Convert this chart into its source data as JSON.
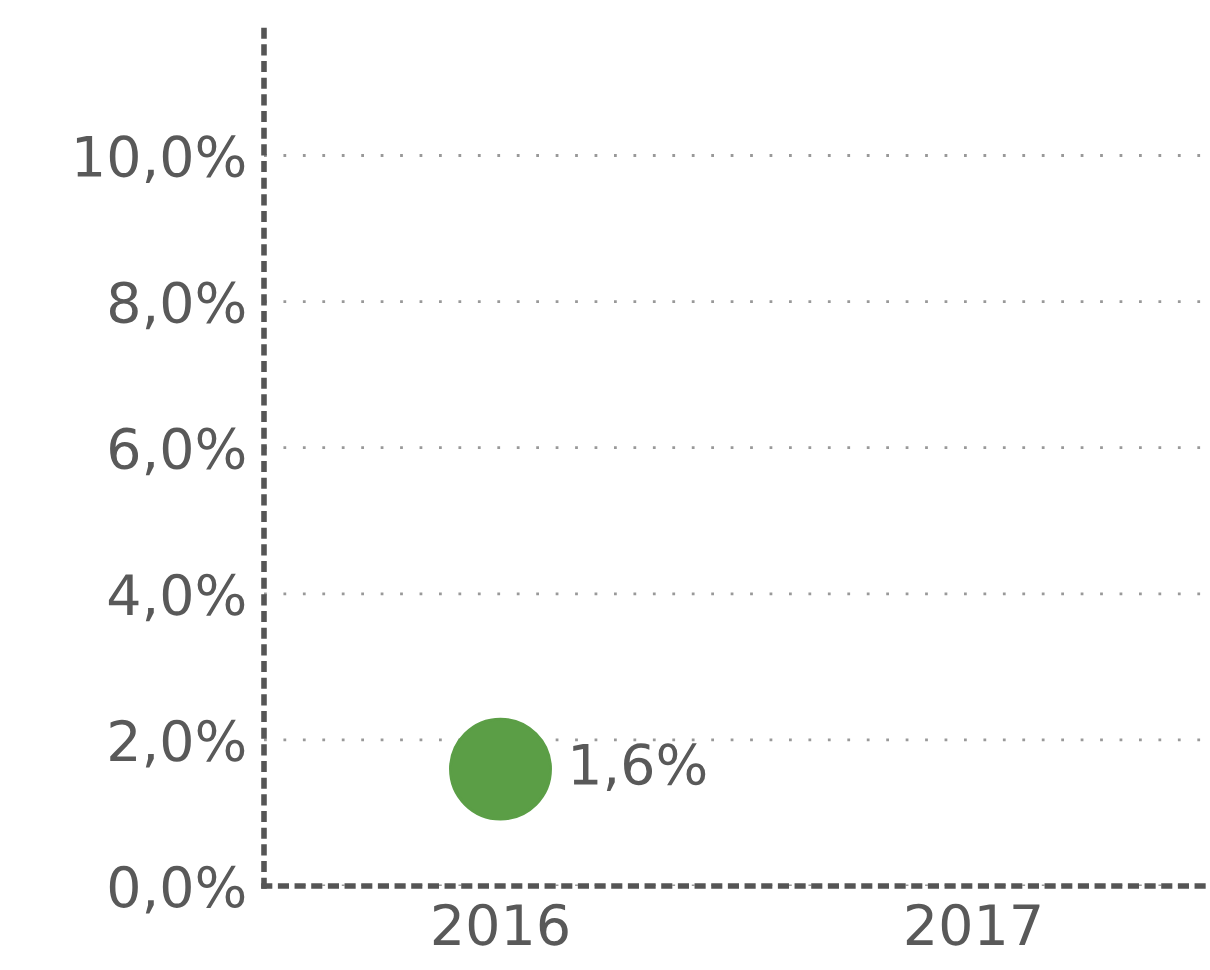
{
  "chart_data": {
    "type": "scatter",
    "categories": [
      "2016",
      "2017"
    ],
    "series": [
      {
        "color": "#5b9e46",
        "values": [
          1.6,
          null
        ]
      }
    ],
    "value_labels": [
      "1,6%",
      null
    ],
    "ylim": [
      0,
      11.8
    ],
    "yticks": [
      {
        "value": 0,
        "label": "0,0%"
      },
      {
        "value": 2,
        "label": "2,0%"
      },
      {
        "value": 4,
        "label": "4,0%"
      },
      {
        "value": 6,
        "label": "6,0%"
      },
      {
        "value": 8,
        "label": "8,0%"
      },
      {
        "value": 10,
        "label": "10,0%"
      }
    ],
    "grid": "y",
    "marker": "circle",
    "legend": false
  }
}
